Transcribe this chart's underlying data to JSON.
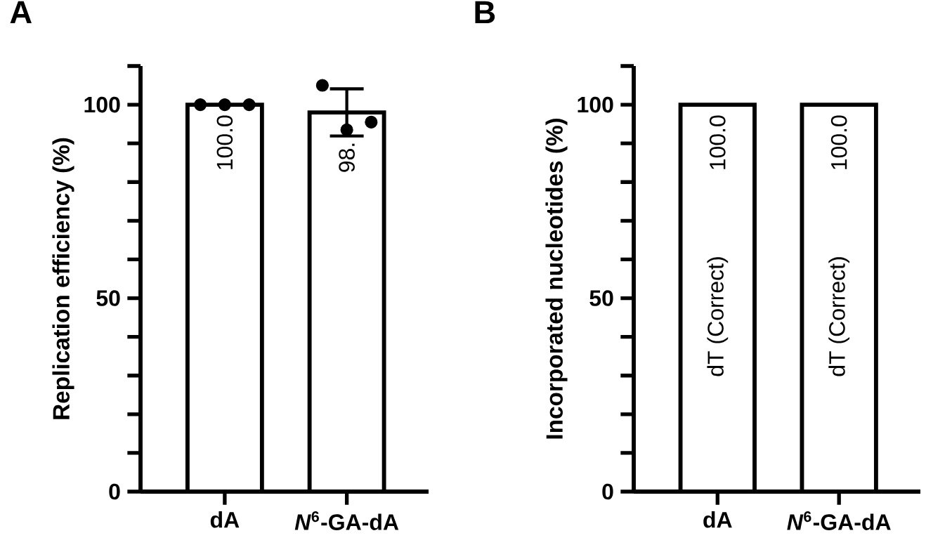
{
  "chart_data": [
    {
      "type": "bar",
      "title": "A",
      "ylabel": "Replication efficiency (%)",
      "categories": [
        "dA",
        "*N*$^{6}$-GA-dA"
      ],
      "series": [
        {
          "color": "#ffffff",
          "values": [
            100.0,
            98.0
          ],
          "errors": [
            null,
            6.1
          ],
          "value_labels": [
            "100.0",
            "98."
          ]
        },
        {
          "type": "scatter",
          "color": "#000000",
          "x": [
            "dA",
            "dA",
            "dA",
            "*N*$^{6}$-GA-dA",
            "*N*$^{6}$-GA-dA",
            "*N*$^{6}$-GA-dA"
          ],
          "values": [
            100,
            100,
            100,
            105,
            93.5,
            95.5
          ]
        }
      ],
      "ylim": [
        0,
        110
      ],
      "yticks": [
        0,
        {
          "value": 10,
          "label": null
        },
        {
          "value": 20,
          "label": null
        },
        {
          "value": 30,
          "label": null
        },
        {
          "value": 40,
          "label": null
        },
        50,
        {
          "value": 60,
          "label": null
        },
        {
          "value": 70,
          "label": null
        },
        {
          "value": 80,
          "label": null
        },
        {
          "value": 90,
          "label": null
        },
        100,
        {
          "value": 110,
          "label": null
        }
      ],
      "marker": "circle"
    },
    {
      "type": "bar",
      "title": "B",
      "ylabel": "Incorporated nucleotides (%)",
      "categories": [
        "dA",
        "*N*$^{6}$-GA-dA"
      ],
      "series": [
        {
          "color": "#ffffff",
          "values": [
            100.0,
            100.0
          ],
          "value_labels": [
            "100.0",
            "100.0"
          ]
        }
      ],
      "annotations": [
        "dT (Correct)",
        "dT (Correct)"
      ],
      "ylim": [
        0,
        110
      ],
      "yticks": [
        0,
        {
          "value": 10,
          "label": null
        },
        {
          "value": 20,
          "label": null
        },
        {
          "value": 30,
          "label": null
        },
        {
          "value": 40,
          "label": null
        },
        50,
        {
          "value": 60,
          "label": null
        },
        {
          "value": 70,
          "label": null
        },
        {
          "value": 80,
          "label": null
        },
        {
          "value": 90,
          "label": null
        },
        100,
        {
          "value": 110,
          "label": null
        }
      ]
    }
  ]
}
